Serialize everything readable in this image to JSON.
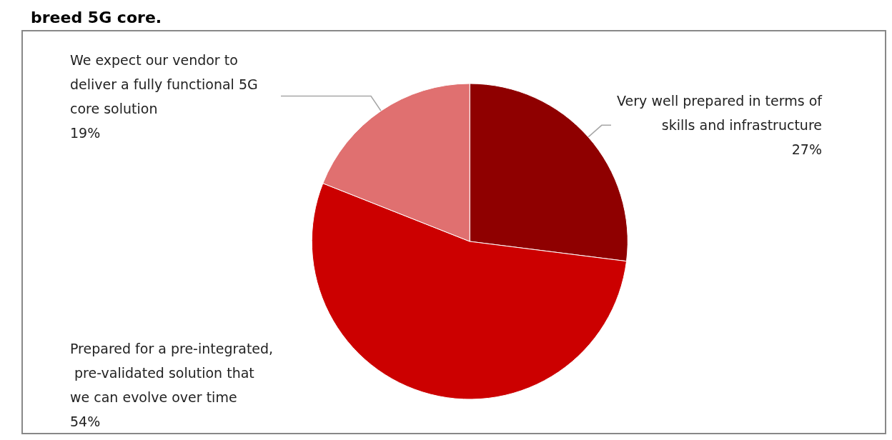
{
  "chart_data": {
    "type": "pie",
    "title": "breed 5G core.",
    "categories": [
      "Very well prepared in terms of skills and infrastructure",
      "Prepared for a pre-integrated, pre-validated solution that we can evolve over time",
      "We expect our vendor to deliver a fully functional 5G core solution"
    ],
    "values": [
      27,
      54,
      19
    ],
    "colors": [
      "#8f0000",
      "#cc0000",
      "#e07070"
    ],
    "value_labels": [
      "27%",
      "54%",
      "19%"
    ],
    "legend": false
  }
}
